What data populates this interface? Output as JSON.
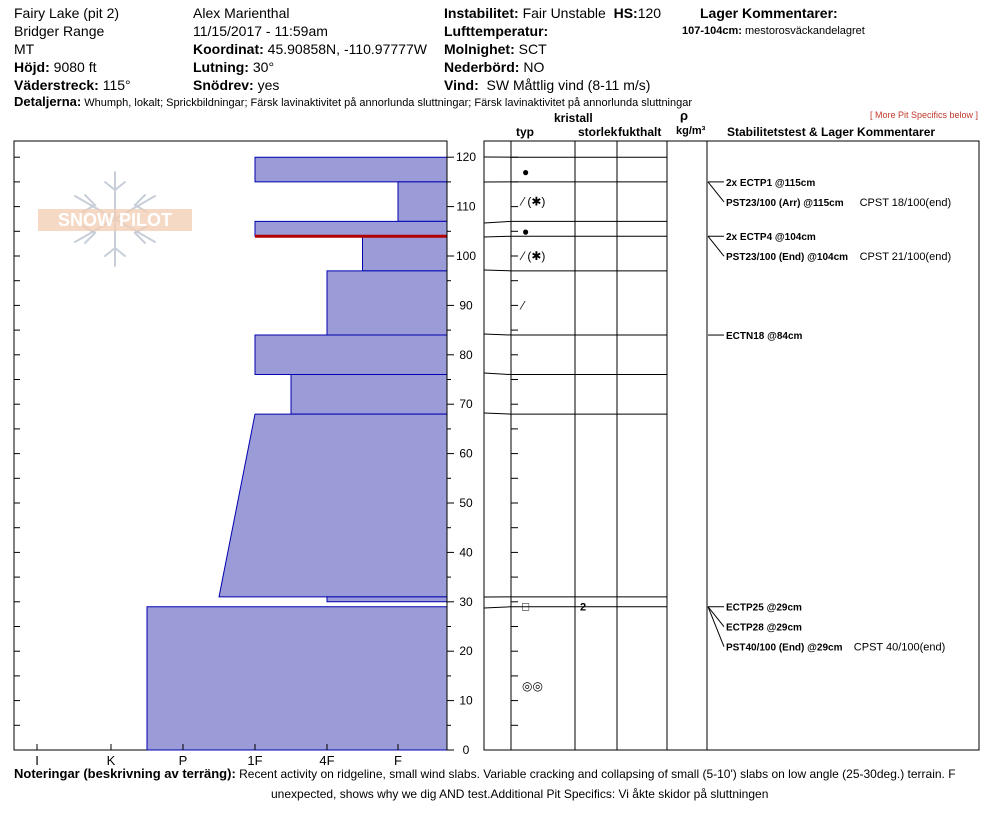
{
  "header": {
    "site": "Fairy Lake (pit 2)",
    "range": "Bridger Range",
    "state": "MT",
    "elevation_label": "Höjd:",
    "elevation": "9080 ft",
    "aspect_label": "Väderstreck:",
    "aspect": "115°",
    "observer": "Alex Marienthal",
    "datetime": "11/15/2017 - 11:59am",
    "coord_label": "Koordinat:",
    "coord": "45.90858N, -110.97777W",
    "slope_label": "Lutning:",
    "slope": "30°",
    "drift_label": "Snödrev:",
    "drift": "yes",
    "instab_label": "Instabilitet:",
    "instab": "Fair Unstable",
    "hs_label": "HS:",
    "hs": "120",
    "airtemp_label": "Lufttemperatur:",
    "sky_label": "Molnighet:",
    "sky": "SCT",
    "precip_label": "Nederbörd:",
    "precip": "NO",
    "wind_label": "Vind:",
    "wind": "SW  Måttlig vind (8-11 m/s)",
    "layer_comments_label": "Lager Kommentarer:",
    "layer_comment_range": "107-104cm:",
    "layer_comment": "mestorosväckandelagret",
    "details_label": "Detaljerna:",
    "details": "Whumph, lokalt;  Sprickbildningar;  Färsk lavinaktivitet på annorlunda sluttningar;  Färsk lavinaktivitet på annorlunda sluttningar",
    "more_specifics": "[ More Pit Specifics below ]"
  },
  "columns": {
    "crystal": "kristall",
    "type": "typ",
    "size": "storlek",
    "moisture": "fukthalt",
    "rho": "ρ",
    "density_unit": "kg/m³",
    "stability": "Stabilitetstest & Lager Kommentarer"
  },
  "logo_text": "SNOW PILOT",
  "notes": {
    "label": "Noteringar (beskrivning av terräng):",
    "line1": "Recent activity on ridgeline, small wind slabs. Variable cracking and collapsing of small (5-10') slabs on low angle (25-30deg.) terrain. F",
    "line2": "unexpected, shows why we dig AND test.Additional Pit Specifics: Vi åkte skidor på sluttningen"
  },
  "colors": {
    "bar_fill": "#9b9bd8",
    "bar_stroke": "#0000b0",
    "weak_layer": "#b00000",
    "notes_red": "#c0392b"
  },
  "chart_data": {
    "type": "bar",
    "title": "",
    "xlabel": "",
    "ylabel": "",
    "ylim": [
      0,
      125
    ],
    "y_ticks": [
      0,
      10,
      20,
      30,
      40,
      50,
      60,
      70,
      80,
      90,
      100,
      110,
      120
    ],
    "hardness_scale": [
      "I",
      "K",
      "P",
      "1F",
      "4F",
      "F"
    ],
    "layers": [
      {
        "top": 120,
        "bottom": 115,
        "hardness_top": "1F",
        "hardness_bottom": "1F"
      },
      {
        "top": 115,
        "bottom": 107,
        "hardness_top": "F",
        "hardness_bottom": "F"
      },
      {
        "top": 107,
        "bottom": 104,
        "hardness_top": "1F",
        "hardness_bottom": "1F"
      },
      {
        "top": 104,
        "bottom": 97,
        "hardness_top": "4F-F",
        "hardness_bottom": "4F-F"
      },
      {
        "top": 97,
        "bottom": 84,
        "hardness_top": "4F",
        "hardness_bottom": "4F"
      },
      {
        "top": 84,
        "bottom": 76,
        "hardness_top": "1F",
        "hardness_bottom": "1F"
      },
      {
        "top": 76,
        "bottom": 68,
        "hardness_top": "1F-4F",
        "hardness_bottom": "1F-4F"
      },
      {
        "top": 68,
        "bottom": 31,
        "hardness_top": "1F",
        "hardness_bottom": "P-1F"
      },
      {
        "top": 31,
        "bottom": 30,
        "hardness_top": "4F",
        "hardness_bottom": "4F"
      },
      {
        "top": 29,
        "bottom": 0,
        "hardness_top": "K-P",
        "hardness_bottom": "K-P"
      }
    ],
    "weak_layer_depth": 104,
    "grain_symbols": [
      {
        "depth": 117,
        "symbol": "●",
        "label": "rounded"
      },
      {
        "depth": 111,
        "symbol": "⁄ (✱)",
        "label": "decomposing"
      },
      {
        "depth": 105,
        "symbol": "●",
        "label": "rounded"
      },
      {
        "depth": 100,
        "symbol": "⁄ (✱)",
        "label": "decomposing"
      },
      {
        "depth": 90,
        "symbol": "⁄",
        "label": "decomposing"
      },
      {
        "depth": 29,
        "symbol": "□",
        "label": "faceted"
      },
      {
        "depth": 13,
        "symbol": "◎◎",
        "label": "melt-freeze"
      }
    ],
    "grain_sizes": [
      {
        "depth": 29,
        "value": "2"
      }
    ],
    "stability_tests": [
      {
        "depth": 115,
        "bold": "2x ECTP1 @115cm",
        "extra": ""
      },
      {
        "depth": 115,
        "bold": "PST23/100 (Arr) @115cm",
        "extra": "CPST 18/100(end)"
      },
      {
        "depth": 104,
        "bold": "2x ECTP4 @104cm",
        "extra": ""
      },
      {
        "depth": 104,
        "bold": "PST23/100 (End) @104cm",
        "extra": "CPST 21/100(end)"
      },
      {
        "depth": 84,
        "bold": "ECTN18 @84cm",
        "extra": ""
      },
      {
        "depth": 29,
        "bold": "ECTP25 @29cm",
        "extra": ""
      },
      {
        "depth": 29,
        "bold": "ECTP28 @29cm",
        "extra": ""
      },
      {
        "depth": 29,
        "bold": "PST40/100 (End) @29cm",
        "extra": "CPST 40/100(end)"
      }
    ]
  }
}
